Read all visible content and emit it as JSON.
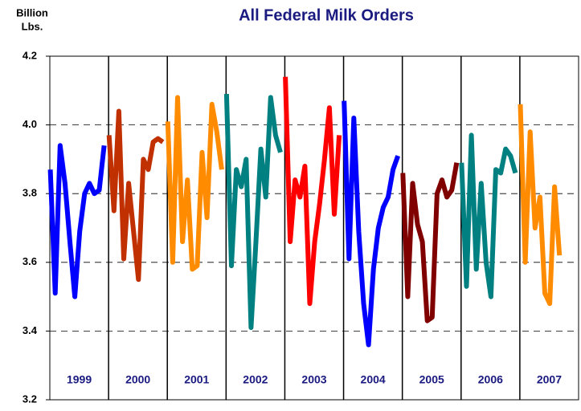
{
  "chart_data": {
    "type": "line",
    "title": "All Federal Milk Orders",
    "y_label": [
      "Billion",
      "Lbs."
    ],
    "ylim": [
      3.2,
      4.2
    ],
    "yticks": [
      3.2,
      3.4,
      3.6,
      3.8,
      {
        "value": 4.0,
        "label": "4.0"
      },
      4.2
    ],
    "grid": true,
    "series": [
      {
        "name": "1999",
        "color": "#0000ff",
        "values": [
          3.87,
          3.51,
          3.94,
          3.83,
          3.66,
          3.5,
          3.69,
          3.8,
          3.83,
          3.8,
          3.81,
          3.94
        ]
      },
      {
        "name": "2000",
        "color": "#c03000",
        "values": [
          3.97,
          3.75,
          4.04,
          3.61,
          3.83,
          3.69,
          3.55,
          3.9,
          3.87,
          3.95,
          3.96,
          3.95
        ]
      },
      {
        "name": "2001",
        "color": "#ff8c00",
        "values": [
          4.01,
          3.6,
          4.08,
          3.66,
          3.84,
          3.58,
          3.59,
          3.92,
          3.73,
          4.06,
          3.98,
          3.87
        ]
      },
      {
        "name": "2002",
        "color": "#008080",
        "values": [
          4.09,
          3.59,
          3.87,
          3.82,
          3.9,
          3.41,
          3.66,
          3.93,
          3.79,
          4.08,
          3.97,
          3.92
        ]
      },
      {
        "name": "2003",
        "color": "#ff0000",
        "values": [
          4.14,
          3.66,
          3.84,
          3.79,
          3.88,
          3.48,
          3.66,
          3.77,
          3.9,
          4.05,
          3.74,
          3.97
        ]
      },
      {
        "name": "2004",
        "color": "#0000ff",
        "values": [
          4.07,
          3.61,
          4.02,
          3.69,
          3.48,
          3.36,
          3.58,
          3.7,
          3.76,
          3.79,
          3.87,
          3.91
        ]
      },
      {
        "name": "2005",
        "color": "#800000",
        "values": [
          3.86,
          3.5,
          3.83,
          3.71,
          3.66,
          3.43,
          3.44,
          3.8,
          3.84,
          3.79,
          3.81,
          3.89
        ]
      },
      {
        "name": "2006",
        "color": "#008080",
        "values": [
          3.89,
          3.53,
          3.97,
          3.58,
          3.83,
          3.6,
          3.5,
          3.87,
          3.86,
          3.93,
          3.91,
          3.86
        ]
      },
      {
        "name": "2007",
        "color": "#ff8c00",
        "values": [
          4.06,
          3.6,
          3.98,
          3.7,
          3.79,
          3.51,
          3.48,
          3.82,
          3.62
        ]
      }
    ]
  }
}
